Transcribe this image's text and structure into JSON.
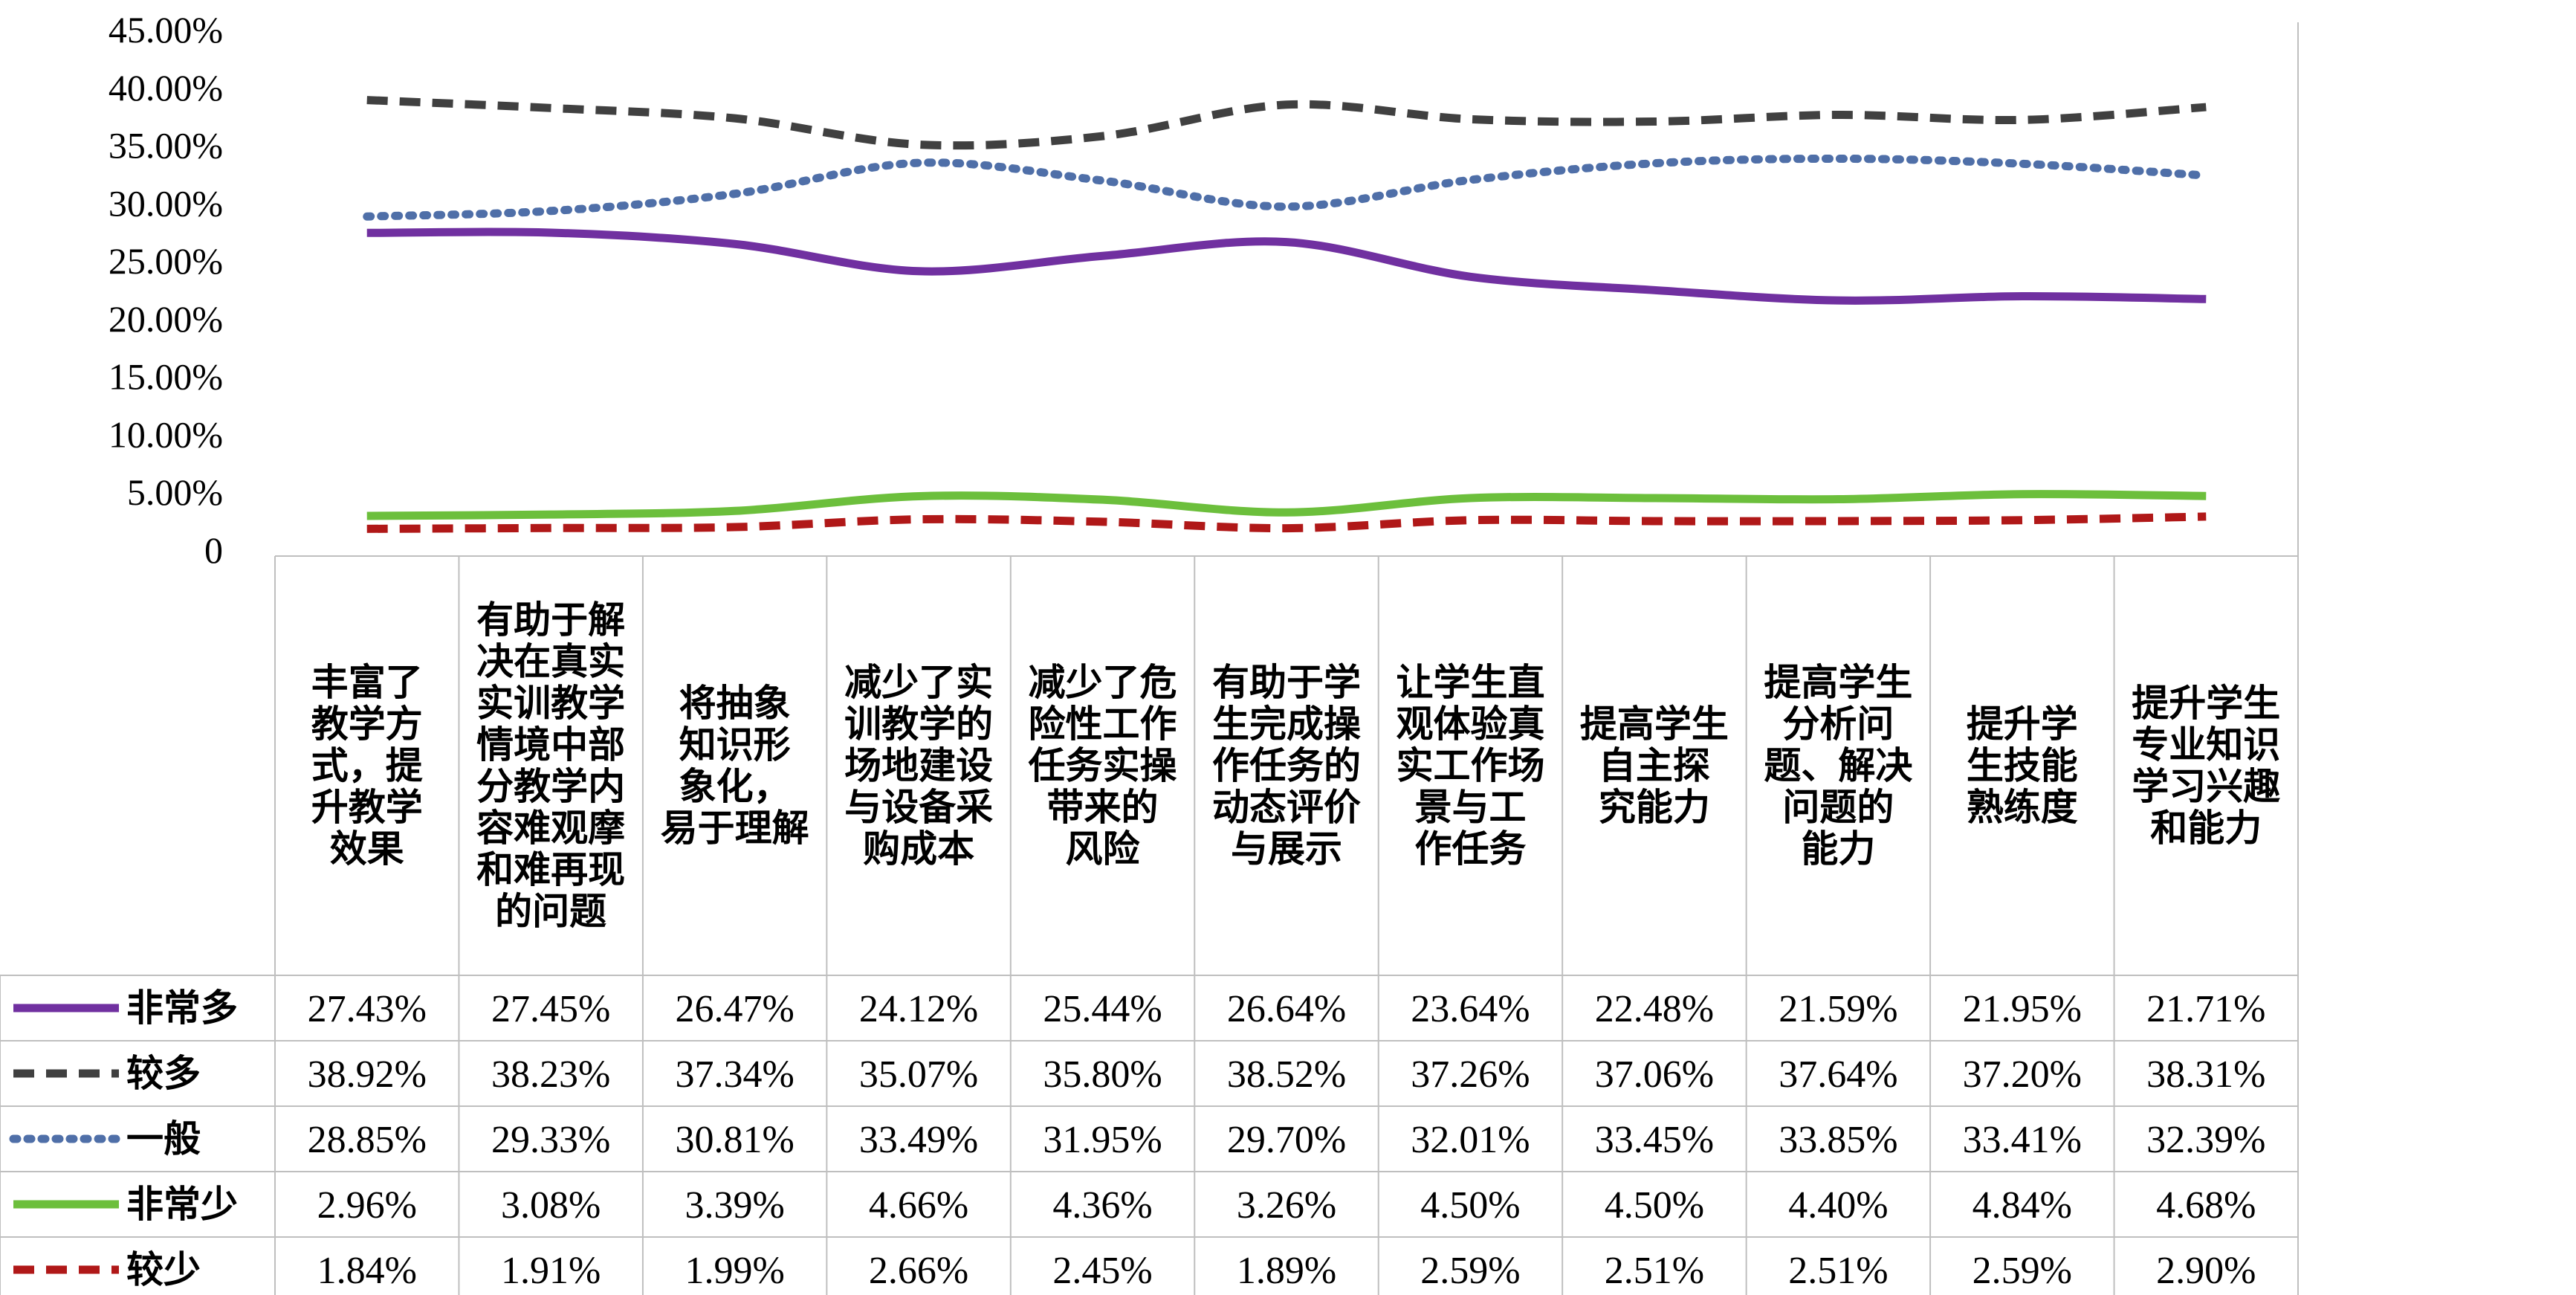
{
  "chart_data": {
    "type": "line",
    "title": "",
    "xlabel": "",
    "ylabel": "",
    "ylim": [
      0,
      0.45
    ],
    "yticks": [
      "0",
      "5.00%",
      "10.00%",
      "15.00%",
      "20.00%",
      "25.00%",
      "30.00%",
      "35.00%",
      "40.00%",
      "45.00%"
    ],
    "categories": [
      [
        "丰富了",
        "教学方",
        "式，提",
        "升教学",
        "效果"
      ],
      [
        "有助于解",
        "决在真实",
        "实训教学",
        "情境中部",
        "分教学内",
        "容难观摩",
        "和难再现",
        "的问题"
      ],
      [
        "将抽象",
        "知识形",
        "象化，",
        "易于理解"
      ],
      [
        "减少了实",
        "训教学的",
        "场地建设",
        "与设备采",
        "购成本"
      ],
      [
        "减少了危",
        "险性工作",
        "任务实操",
        "带来的",
        "风险"
      ],
      [
        "有助于学",
        "生完成操",
        "作任务的",
        "动态评价",
        "与展示"
      ],
      [
        "让学生直",
        "观体验真",
        "实工作场",
        "景与工",
        "作任务"
      ],
      [
        "提高学生",
        "自主探",
        "究能力"
      ],
      [
        "提高学生",
        "分析问",
        "题、解决",
        "问题的",
        "能力"
      ],
      [
        "提升学",
        "生技能",
        "熟练度"
      ],
      [
        "提升学生",
        "专业知识",
        "学习兴趣",
        "和能力"
      ]
    ],
    "legend_position": "table-left",
    "grid": false,
    "series": [
      {
        "name": "非常多",
        "color": "#7030a0",
        "style": "solid",
        "values": [
          0.2743,
          0.2745,
          0.2647,
          0.2412,
          0.2544,
          0.2664,
          0.2364,
          0.2248,
          0.2159,
          0.2195,
          0.2171
        ],
        "labels": [
          "27.43%",
          "27.45%",
          "26.47%",
          "24.12%",
          "25.44%",
          "26.64%",
          "23.64%",
          "22.48%",
          "21.59%",
          "21.95%",
          "21.71%"
        ]
      },
      {
        "name": "较多",
        "color": "#404040",
        "style": "dashed",
        "values": [
          0.3892,
          0.3823,
          0.3734,
          0.3507,
          0.358,
          0.3852,
          0.3726,
          0.3706,
          0.3764,
          0.372,
          0.3831
        ],
        "labels": [
          "38.92%",
          "38.23%",
          "37.34%",
          "35.07%",
          "35.80%",
          "38.52%",
          "37.26%",
          "37.06%",
          "37.64%",
          "37.20%",
          "38.31%"
        ]
      },
      {
        "name": "一般",
        "color": "#4f6fa8",
        "style": "dotted",
        "values": [
          0.2885,
          0.2933,
          0.3081,
          0.3349,
          0.3195,
          0.297,
          0.3201,
          0.3345,
          0.3385,
          0.3341,
          0.3239
        ],
        "labels": [
          "28.85%",
          "29.33%",
          "30.81%",
          "33.49%",
          "31.95%",
          "29.70%",
          "32.01%",
          "33.45%",
          "33.85%",
          "33.41%",
          "32.39%"
        ]
      },
      {
        "name": "非常少",
        "color": "#6cbf3c",
        "style": "solid",
        "values": [
          0.0296,
          0.0308,
          0.0339,
          0.0466,
          0.0436,
          0.0326,
          0.045,
          0.045,
          0.044,
          0.0484,
          0.0468
        ],
        "labels": [
          "2.96%",
          "3.08%",
          "3.39%",
          "4.66%",
          "4.36%",
          "3.26%",
          "4.50%",
          "4.50%",
          "4.40%",
          "4.84%",
          "4.68%"
        ]
      },
      {
        "name": "较少",
        "color": "#b01818",
        "style": "dashed",
        "values": [
          0.0184,
          0.0191,
          0.0199,
          0.0266,
          0.0245,
          0.0189,
          0.0259,
          0.0251,
          0.0251,
          0.0259,
          0.029
        ],
        "labels": [
          "1.84%",
          "1.91%",
          "1.99%",
          "2.66%",
          "2.45%",
          "1.89%",
          "2.59%",
          "2.51%",
          "2.51%",
          "2.59%",
          "2.90%"
        ]
      }
    ]
  }
}
